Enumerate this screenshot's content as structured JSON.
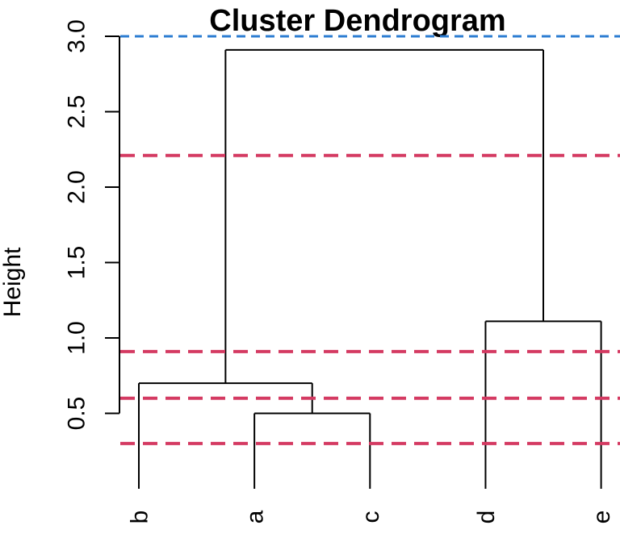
{
  "figure": {
    "background": "#FFFFFF"
  },
  "y_axis": {
    "label": "Height",
    "tick_labels": [
      "0.5",
      "1.0",
      "1.5",
      "2.0",
      "2.5",
      "3.0"
    ]
  },
  "x_axis": {
    "leaf_labels": [
      "b",
      "a",
      "c",
      "d",
      "e"
    ]
  },
  "colors": {
    "dendrogram_line": "#000000",
    "axis_line": "#000000",
    "text": "#000000",
    "blue_threshold": "#2D7DD2",
    "red_threshold": "#D43A62"
  },
  "chart_data": {
    "type": "dendrogram",
    "title": "Cluster Dendrogram",
    "ylabel": "Height",
    "leaves": [
      "b",
      "a",
      "c",
      "d",
      "e"
    ],
    "merges": [
      {
        "id": "m0",
        "left": "leaf:1",
        "right": "leaf:2",
        "members": [
          "a",
          "c"
        ],
        "height": 0.5
      },
      {
        "id": "m1",
        "left": "leaf:0",
        "right": "merge:0",
        "members": [
          "b",
          "a",
          "c"
        ],
        "height": 0.7
      },
      {
        "id": "m2",
        "left": "leaf:3",
        "right": "leaf:4",
        "members": [
          "d",
          "e"
        ],
        "height": 1.11
      },
      {
        "id": "m3",
        "left": "merge:1",
        "right": "merge:2",
        "members": [
          "b",
          "a",
          "c",
          "d",
          "e"
        ],
        "height": 2.91
      }
    ],
    "yticks": [
      0.5,
      1.0,
      1.5,
      2.0,
      2.5,
      3.0
    ],
    "ylim": [
      0.3,
      3.05
    ],
    "grid": false,
    "legend": false,
    "reference_lines": [
      {
        "height": 3.0,
        "color": "blue",
        "style": "dashed"
      },
      {
        "height": 2.21,
        "color": "red",
        "style": "dashed"
      },
      {
        "height": 0.91,
        "color": "red",
        "style": "dashed"
      },
      {
        "height": 0.6,
        "color": "red",
        "style": "dashed"
      },
      {
        "height": 0.3,
        "color": "red",
        "style": "dashed"
      }
    ]
  }
}
